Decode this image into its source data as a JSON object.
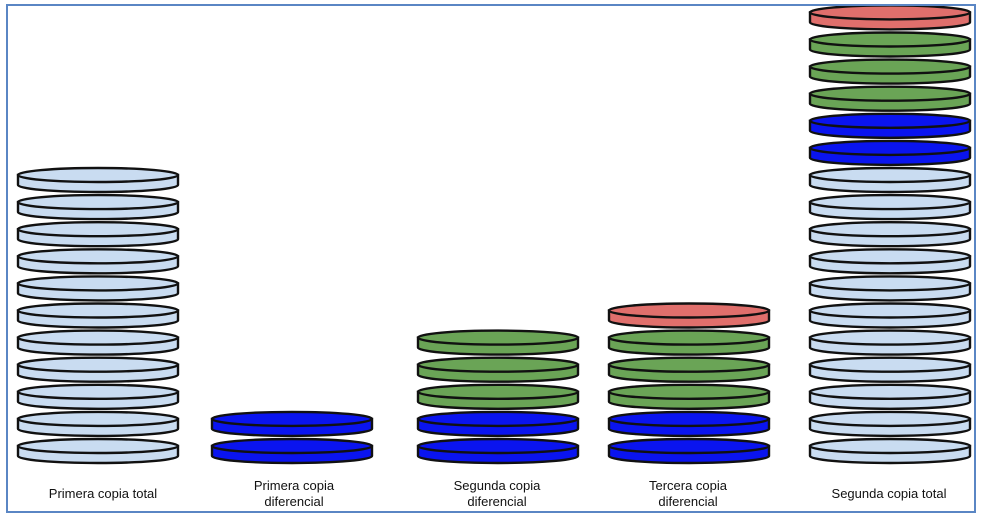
{
  "colors": {
    "frame": "#5a86c4",
    "full": "#c9dcf1",
    "diff1": "#0a14ef",
    "diff2": "#6aa456",
    "diff3": "#e06f6c",
    "outline": "#111111"
  },
  "legend_colors_order": [
    "full",
    "diff1",
    "diff2",
    "diff3"
  ],
  "stacks": [
    {
      "label": "Primera copia total",
      "disks": [
        "full",
        "full",
        "full",
        "full",
        "full",
        "full",
        "full",
        "full",
        "full",
        "full",
        "full"
      ]
    },
    {
      "label": "Primera copia\ndiferencial",
      "disks": [
        "diff1",
        "diff1"
      ]
    },
    {
      "label": "Segunda copia\ndiferencial",
      "disks": [
        "diff1",
        "diff1",
        "diff2",
        "diff2",
        "diff2"
      ]
    },
    {
      "label": "Tercera copia\ndiferencial",
      "disks": [
        "diff1",
        "diff1",
        "diff2",
        "diff2",
        "diff2",
        "diff3"
      ]
    },
    {
      "label": "Segunda copia total",
      "disks": [
        "full",
        "full",
        "full",
        "full",
        "full",
        "full",
        "full",
        "full",
        "full",
        "full",
        "full",
        "diff1",
        "diff1",
        "diff2",
        "diff2",
        "diff2",
        "diff3"
      ]
    }
  ]
}
